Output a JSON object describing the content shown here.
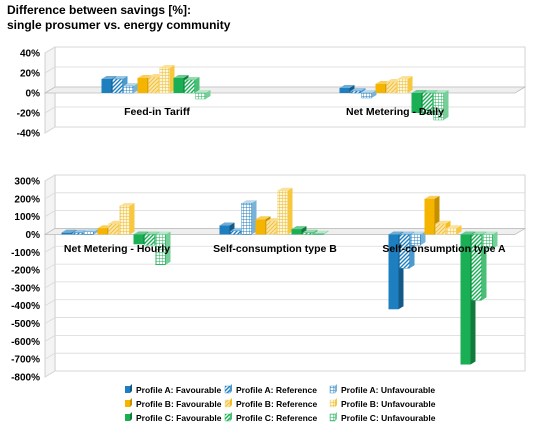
{
  "title_line1": "Difference between savings [%]:",
  "title_line2": "single prosumer vs. energy community",
  "chart_data": [
    {
      "type": "bar",
      "categories": [
        "Feed-in Tariff",
        "Net Metering - Daily"
      ],
      "ylim": [
        -40,
        40
      ],
      "yticks": [
        "40%",
        "20%",
        "0%",
        "-20%",
        "-40%"
      ],
      "yvals": [
        40,
        20,
        0,
        -20,
        -40
      ],
      "series": [
        {
          "name": "Profile A: Favourable",
          "values": [
            14,
            5
          ]
        },
        {
          "name": "Profile A: Reference",
          "values": [
            14,
            2
          ]
        },
        {
          "name": "Profile A: Unfavourable",
          "values": [
            7,
            -5
          ]
        },
        {
          "name": "Profile B: Favourable",
          "values": [
            15,
            9
          ]
        },
        {
          "name": "Profile B: Reference",
          "values": [
            16,
            11
          ]
        },
        {
          "name": "Profile B: Unfavourable",
          "values": [
            25,
            14
          ]
        },
        {
          "name": "Profile C: Favourable",
          "values": [
            15,
            -20
          ]
        },
        {
          "name": "Profile C: Reference",
          "values": [
            13,
            -21
          ]
        },
        {
          "name": "Profile C: Unfavourable",
          "values": [
            -6,
            -27
          ]
        }
      ]
    },
    {
      "type": "bar",
      "categories": [
        "Net Metering - Hourly",
        "Self-consumption type B",
        "Self-consumption type A"
      ],
      "ylim": [
        -800,
        300
      ],
      "yticks": [
        "300%",
        "200%",
        "100%",
        "0%",
        "-100%",
        "-200%",
        "-300%",
        "-400%",
        "-500%",
        "-600%",
        "-700%",
        "-800%"
      ],
      "yvals": [
        300,
        200,
        100,
        0,
        -100,
        -200,
        -300,
        -400,
        -500,
        -600,
        -700,
        -800
      ],
      "series": [
        {
          "name": "Profile A: Favourable",
          "values": [
            10,
            50,
            -420
          ]
        },
        {
          "name": "Profile A: Reference",
          "values": [
            10,
            20,
            -190
          ]
        },
        {
          "name": "Profile A: Unfavourable",
          "values": [
            15,
            175,
            -60
          ]
        },
        {
          "name": "Profile B: Favourable",
          "values": [
            35,
            85,
            200
          ]
        },
        {
          "name": "Profile B: Reference",
          "values": [
            60,
            75,
            60
          ]
        },
        {
          "name": "Profile B: Unfavourable",
          "values": [
            160,
            245,
            35
          ]
        },
        {
          "name": "Profile C: Favourable",
          "values": [
            -55,
            30,
            -730
          ]
        },
        {
          "name": "Profile C: Reference",
          "values": [
            -60,
            10,
            -370
          ]
        },
        {
          "name": "Profile C: Unfavourable",
          "values": [
            -170,
            5,
            -80
          ]
        }
      ]
    }
  ],
  "legend": [
    "Profile A: Favourable",
    "Profile A: Reference",
    "Profile A: Unfavourable",
    "Profile B: Favourable",
    "Profile B: Reference",
    "Profile B: Unfavourable",
    "Profile C: Favourable",
    "Profile C: Reference",
    "Profile C: Unfavourable"
  ],
  "colors": {
    "profile_a": "#1E7FC0",
    "profile_b": "#F5B400",
    "profile_c": "#1AAE55",
    "profile_b_light": "#F3D98A",
    "floor": "#EFEFEF"
  }
}
